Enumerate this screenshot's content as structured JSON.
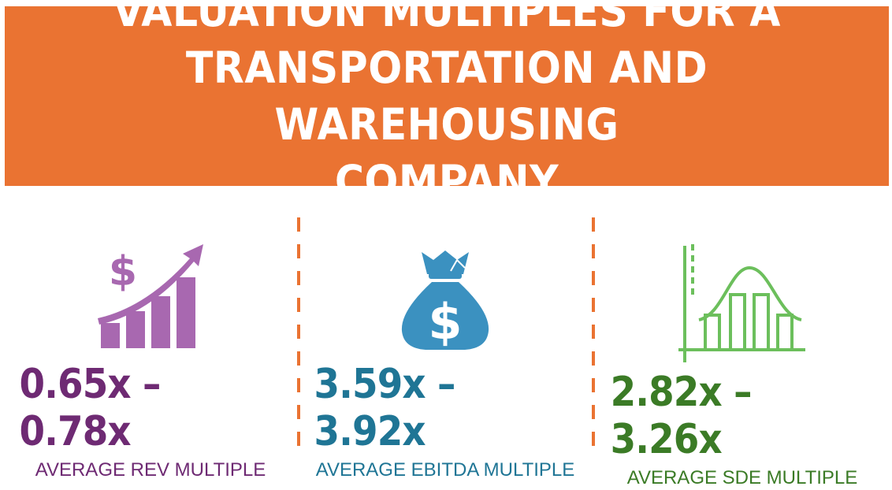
{
  "header": {
    "title_lines": [
      "VALUATION MULTIPLES FOR A",
      "TRANSPORTATION AND WAREHOUSING",
      "COMPANY"
    ]
  },
  "metrics": [
    {
      "value": "0.65x – 0.78x",
      "label": "AVERAGE REV MULTIPLE",
      "color": "#6e2a73",
      "icon": "revenue-growth-icon",
      "icon_color": "#a868b0"
    },
    {
      "value": "3.59x – 3.92x",
      "label": "AVERAGE EBITDA MULTIPLE",
      "color": "#1f7595",
      "icon": "money-bag-icon",
      "icon_color": "#3b91c0"
    },
    {
      "value": "2.82x – 3.26x",
      "label": "AVERAGE SDE MULTIPLE",
      "color": "#3b7b26",
      "icon": "bell-curve-chart-icon",
      "icon_color": "#6cbf5c"
    }
  ],
  "colors": {
    "accent": "#ea7332"
  }
}
